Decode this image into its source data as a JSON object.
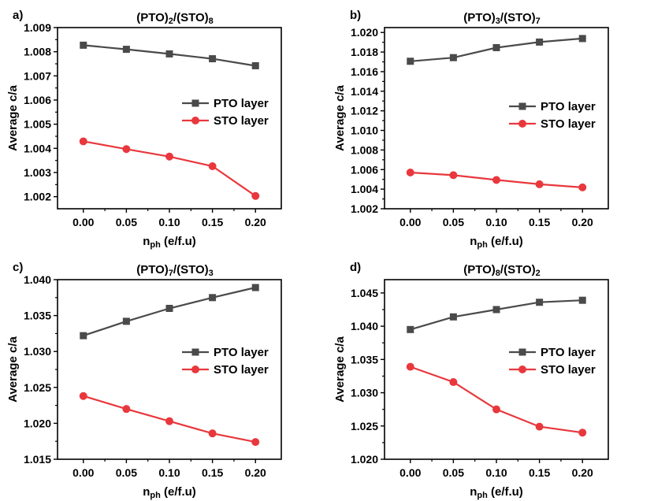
{
  "chart_data": [
    {
      "type": "line",
      "panel_label": "a)",
      "title_parts": [
        "(PTO)",
        "2",
        "/(STO)",
        "8"
      ],
      "xlabel_parts": [
        "n",
        "ph",
        " (e/f.u)"
      ],
      "ylabel": "Average c/a",
      "x": [
        0.0,
        0.05,
        0.1,
        0.15,
        0.2
      ],
      "x_tick_labels": [
        "0.00",
        "0.05",
        "0.10",
        "0.15",
        "0.20"
      ],
      "xlim": [
        -0.03,
        0.23
      ],
      "ylim": [
        1.0015,
        1.009
      ],
      "y_ticks": [
        1.002,
        1.003,
        1.004,
        1.005,
        1.006,
        1.007,
        1.008,
        1.009
      ],
      "y_tick_labels": [
        "1.002",
        "1.003",
        "1.004",
        "1.005",
        "1.006",
        "1.007",
        "1.008",
        "1.009"
      ],
      "legend_position": "right",
      "series": [
        {
          "name": "PTO layer",
          "color": "#4a4a4a",
          "marker": "square",
          "values": [
            1.00827,
            1.0081,
            1.00791,
            1.00771,
            1.00742
          ]
        },
        {
          "name": "STO layer",
          "color": "#e8383d",
          "marker": "circle",
          "values": [
            1.00429,
            1.00397,
            1.00366,
            1.00326,
            1.00203
          ]
        }
      ]
    },
    {
      "type": "line",
      "panel_label": "b)",
      "title_parts": [
        "(PTO)",
        "3",
        "/(STO)",
        "7"
      ],
      "xlabel_parts": [
        "n",
        "ph",
        " (e/f.u)"
      ],
      "ylabel": "Average c/a",
      "x": [
        0.0,
        0.05,
        0.1,
        0.15,
        0.2
      ],
      "x_tick_labels": [
        "0.00",
        "0.05",
        "0.10",
        "0.15",
        "0.20"
      ],
      "xlim": [
        -0.03,
        0.23
      ],
      "ylim": [
        1.002,
        1.0205
      ],
      "y_ticks": [
        1.002,
        1.004,
        1.006,
        1.008,
        1.01,
        1.012,
        1.014,
        1.016,
        1.018,
        1.02
      ],
      "y_tick_labels": [
        "1.002",
        "1.004",
        "1.006",
        "1.008",
        "1.010",
        "1.012",
        "1.014",
        "1.016",
        "1.018",
        "1.020"
      ],
      "legend_position": "right",
      "series": [
        {
          "name": "PTO layer",
          "color": "#4a4a4a",
          "marker": "square",
          "values": [
            1.01706,
            1.01743,
            1.01845,
            1.01902,
            1.01938
          ]
        },
        {
          "name": "STO layer",
          "color": "#e8383d",
          "marker": "circle",
          "values": [
            1.0057,
            1.00543,
            1.00494,
            1.0045,
            1.00418
          ]
        }
      ]
    },
    {
      "type": "line",
      "panel_label": "c)",
      "title_parts": [
        "(PTO)",
        "7",
        "/(STO)",
        "3"
      ],
      "xlabel_parts": [
        "n",
        "ph",
        " (e/f.u)"
      ],
      "ylabel": "Average c/a",
      "x": [
        0.0,
        0.05,
        0.1,
        0.15,
        0.2
      ],
      "x_tick_labels": [
        "0.00",
        "0.05",
        "0.10",
        "0.15",
        "0.20"
      ],
      "xlim": [
        -0.03,
        0.23
      ],
      "ylim": [
        1.015,
        1.04
      ],
      "y_ticks": [
        1.015,
        1.02,
        1.025,
        1.03,
        1.035,
        1.04
      ],
      "y_tick_labels": [
        "1.015",
        "1.020",
        "1.025",
        "1.030",
        "1.035",
        "1.040"
      ],
      "legend_position": "right",
      "series": [
        {
          "name": "PTO layer",
          "color": "#4a4a4a",
          "marker": "square",
          "values": [
            1.0322,
            1.0342,
            1.036,
            1.0375,
            1.0389
          ]
        },
        {
          "name": "STO layer",
          "color": "#e8383d",
          "marker": "circle",
          "values": [
            1.0238,
            1.022,
            1.0203,
            1.0186,
            1.0174
          ]
        }
      ]
    },
    {
      "type": "line",
      "panel_label": "d)",
      "title_parts": [
        "(PTO)",
        "8",
        "/(STO)",
        "2"
      ],
      "xlabel_parts": [
        "n",
        "ph",
        " (e/f.u)"
      ],
      "ylabel": "Average c/a",
      "x": [
        0.0,
        0.05,
        0.1,
        0.15,
        0.2
      ],
      "x_tick_labels": [
        "0.00",
        "0.05",
        "0.10",
        "0.15",
        "0.20"
      ],
      "xlim": [
        -0.03,
        0.23
      ],
      "ylim": [
        1.02,
        1.047
      ],
      "y_ticks": [
        1.02,
        1.025,
        1.03,
        1.035,
        1.04,
        1.045
      ],
      "y_tick_labels": [
        "1.020",
        "1.025",
        "1.030",
        "1.035",
        "1.040",
        "1.045"
      ],
      "legend_position": "right",
      "series": [
        {
          "name": "PTO layer",
          "color": "#4a4a4a",
          "marker": "square",
          "values": [
            1.0395,
            1.0414,
            1.0425,
            1.0436,
            1.0439
          ]
        },
        {
          "name": "STO layer",
          "color": "#e8383d",
          "marker": "circle",
          "values": [
            1.0339,
            1.0316,
            1.0275,
            1.0249,
            1.024
          ]
        }
      ]
    }
  ]
}
